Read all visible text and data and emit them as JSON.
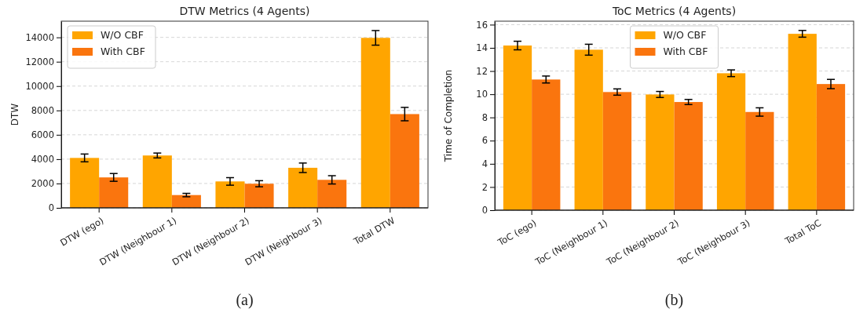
{
  "chart_data": [
    {
      "type": "bar",
      "title": "DTW Metrics (4 Agents)",
      "ylabel": "DTW",
      "categories": [
        "DTW (ego)",
        "DTW (Neighbour 1)",
        "DTW (Neighbour 2)",
        "DTW (Neighbour 3)",
        "Total DTW"
      ],
      "series": [
        {
          "name": "W/O CBF",
          "color": "#ffa500",
          "values": [
            4100,
            4300,
            2170,
            3290,
            13960
          ],
          "errors": [
            320,
            200,
            310,
            390,
            600
          ]
        },
        {
          "name": "With CBF",
          "color": "#fa750e",
          "values": [
            2500,
            1050,
            1980,
            2300,
            7700
          ],
          "errors": [
            320,
            140,
            250,
            340,
            550
          ]
        }
      ],
      "ylim": [
        0,
        15330
      ],
      "yticks": [
        0,
        2000,
        4000,
        6000,
        8000,
        10000,
        12000,
        14000
      ],
      "grid": "y",
      "legend": "top left",
      "annotations": [
        "(a)"
      ]
    },
    {
      "type": "bar",
      "title": "ToC Metrics (4 Agents)",
      "ylabel": "Time of Completion",
      "categories": [
        "ToC (ego)",
        "ToC (Neighbour 1)",
        "ToC (Neighbour 2)",
        "ToC (Neighbour 3)",
        "Total ToC"
      ],
      "series": [
        {
          "name": "W/O CBF",
          "color": "#ffa500",
          "values": [
            14.2,
            13.84,
            9.98,
            11.81,
            15.21
          ],
          "errors": [
            0.37,
            0.47,
            0.26,
            0.29,
            0.29
          ]
        },
        {
          "name": "With CBF",
          "color": "#fa750e",
          "values": [
            11.27,
            10.19,
            9.33,
            8.47,
            10.88
          ],
          "errors": [
            0.3,
            0.27,
            0.22,
            0.36,
            0.4
          ]
        }
      ],
      "ylim": [
        0,
        16.3
      ],
      "yticks": [
        0,
        2,
        4,
        6,
        8,
        10,
        12,
        14,
        16
      ],
      "grid": "y",
      "legend": "top",
      "annotations": [
        "(b)"
      ]
    }
  ]
}
